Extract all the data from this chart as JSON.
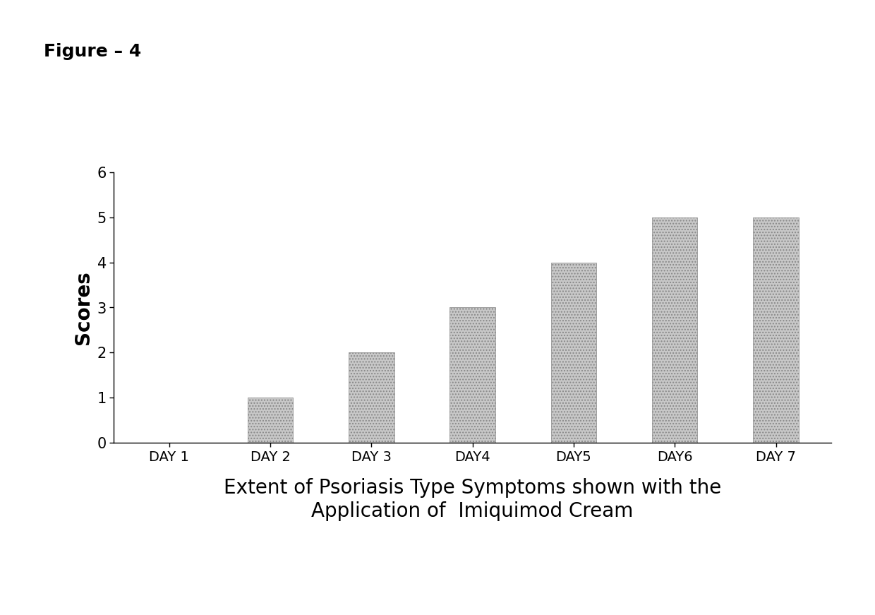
{
  "categories": [
    "DAY 1",
    "DAY 2",
    "DAY 3",
    "DAY4",
    "DAY5",
    "DAY6",
    "DAY 7"
  ],
  "values": [
    0,
    1,
    2,
    3,
    4,
    5,
    5
  ],
  "bar_color": "#c8c8c8",
  "bar_hatch": "....",
  "ylabel": "Scores",
  "xlabel_line1": "Extent of Psoriasis Type Symptoms shown with the",
  "xlabel_line2": "Application of  Imiquimod Cream",
  "figure_label": "Figure – 4",
  "ylim": [
    0,
    6
  ],
  "yticks": [
    0,
    1,
    2,
    3,
    4,
    5,
    6
  ],
  "background_color": "#ffffff",
  "bar_edge_color": "#888888",
  "ylabel_fontsize": 20,
  "xlabel_fontsize": 20,
  "xtick_fontsize": 14,
  "ytick_fontsize": 15,
  "figure_label_fontsize": 18,
  "bar_width": 0.45
}
